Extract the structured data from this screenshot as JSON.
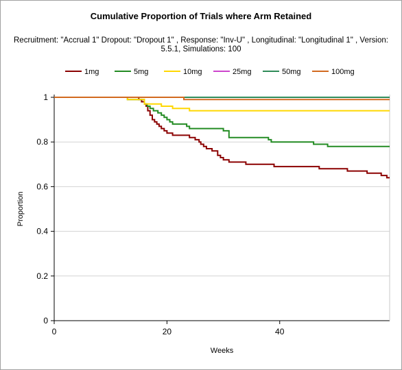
{
  "chart_data": {
    "type": "line",
    "title": "Cumulative Proportion of Trials where Arm Retained",
    "subtitle_lines": [
      "Recruitment: \"Accrual 1\" Dropout: \"Dropout 1\" , Response: \"Inv-U\" , Longitudinal: \"Longitudinal 1\" , Version:",
      "5.5.1, Simulations: 100"
    ],
    "xlabel": "Weeks",
    "ylabel": "Proportion",
    "xlim": [
      0,
      59.5
    ],
    "ylim": [
      0,
      1
    ],
    "x_ticks": [
      0,
      20,
      40
    ],
    "y_ticks": [
      0,
      0.2,
      0.4,
      0.6,
      0.8,
      1
    ],
    "x_tick_labels": [
      "0",
      "20",
      "40"
    ],
    "y_tick_labels": [
      "0",
      "0.2",
      "0.4",
      "0.6",
      "0.8",
      "1"
    ],
    "grid": "horizontal",
    "legend": "top",
    "step": true,
    "series": [
      {
        "name": "1mg",
        "color": "#8b0000",
        "points": [
          [
            0,
            1
          ],
          [
            15,
            1
          ],
          [
            15,
            0.99
          ],
          [
            15.5,
            0.99
          ],
          [
            15.5,
            0.98
          ],
          [
            16,
            0.98
          ],
          [
            16,
            0.97
          ],
          [
            16.3,
            0.97
          ],
          [
            16.3,
            0.96
          ],
          [
            16.6,
            0.96
          ],
          [
            16.6,
            0.94
          ],
          [
            17,
            0.94
          ],
          [
            17,
            0.92
          ],
          [
            17.4,
            0.92
          ],
          [
            17.4,
            0.9
          ],
          [
            17.8,
            0.9
          ],
          [
            17.8,
            0.89
          ],
          [
            18.2,
            0.89
          ],
          [
            18.2,
            0.88
          ],
          [
            18.6,
            0.88
          ],
          [
            18.6,
            0.87
          ],
          [
            19,
            0.87
          ],
          [
            19,
            0.86
          ],
          [
            19.5,
            0.86
          ],
          [
            19.5,
            0.85
          ],
          [
            20,
            0.85
          ],
          [
            20,
            0.84
          ],
          [
            21,
            0.84
          ],
          [
            21,
            0.83
          ],
          [
            24,
            0.83
          ],
          [
            24,
            0.82
          ],
          [
            25,
            0.82
          ],
          [
            25,
            0.81
          ],
          [
            25.7,
            0.81
          ],
          [
            25.7,
            0.8
          ],
          [
            26,
            0.8
          ],
          [
            26,
            0.79
          ],
          [
            26.5,
            0.79
          ],
          [
            26.5,
            0.78
          ],
          [
            27,
            0.78
          ],
          [
            27,
            0.77
          ],
          [
            28,
            0.77
          ],
          [
            28,
            0.76
          ],
          [
            29,
            0.76
          ],
          [
            29,
            0.74
          ],
          [
            29.5,
            0.74
          ],
          [
            29.5,
            0.73
          ],
          [
            30,
            0.73
          ],
          [
            30,
            0.72
          ],
          [
            31,
            0.72
          ],
          [
            31,
            0.71
          ],
          [
            34,
            0.71
          ],
          [
            34,
            0.7
          ],
          [
            39,
            0.7
          ],
          [
            39,
            0.69
          ],
          [
            47,
            0.69
          ],
          [
            47,
            0.68
          ],
          [
            52,
            0.68
          ],
          [
            52,
            0.67
          ],
          [
            55.5,
            0.67
          ],
          [
            55.5,
            0.66
          ],
          [
            58,
            0.66
          ],
          [
            58,
            0.65
          ],
          [
            59,
            0.65
          ],
          [
            59,
            0.64
          ],
          [
            59.5,
            0.64
          ]
        ]
      },
      {
        "name": "5mg",
        "color": "#228b22",
        "points": [
          [
            0,
            1
          ],
          [
            13,
            1
          ],
          [
            13,
            0.99
          ],
          [
            16,
            0.99
          ],
          [
            16,
            0.97
          ],
          [
            16.5,
            0.97
          ],
          [
            16.5,
            0.96
          ],
          [
            17,
            0.96
          ],
          [
            17,
            0.95
          ],
          [
            17.6,
            0.95
          ],
          [
            17.6,
            0.94
          ],
          [
            18.4,
            0.94
          ],
          [
            18.4,
            0.93
          ],
          [
            19,
            0.93
          ],
          [
            19,
            0.92
          ],
          [
            19.5,
            0.92
          ],
          [
            19.5,
            0.91
          ],
          [
            20,
            0.91
          ],
          [
            20,
            0.9
          ],
          [
            20.5,
            0.9
          ],
          [
            20.5,
            0.89
          ],
          [
            21,
            0.89
          ],
          [
            21,
            0.88
          ],
          [
            23.5,
            0.88
          ],
          [
            23.5,
            0.87
          ],
          [
            24,
            0.87
          ],
          [
            24,
            0.86
          ],
          [
            30,
            0.86
          ],
          [
            30,
            0.85
          ],
          [
            31,
            0.85
          ],
          [
            31,
            0.82
          ],
          [
            38,
            0.82
          ],
          [
            38,
            0.81
          ],
          [
            38.5,
            0.81
          ],
          [
            38.5,
            0.8
          ],
          [
            46,
            0.8
          ],
          [
            46,
            0.79
          ],
          [
            48.5,
            0.79
          ],
          [
            48.5,
            0.78
          ],
          [
            59.5,
            0.78
          ]
        ]
      },
      {
        "name": "10mg",
        "color": "#ffd700",
        "points": [
          [
            0,
            1
          ],
          [
            13,
            1
          ],
          [
            13,
            0.99
          ],
          [
            16,
            0.99
          ],
          [
            16,
            0.97
          ],
          [
            19,
            0.97
          ],
          [
            19,
            0.96
          ],
          [
            21,
            0.96
          ],
          [
            21,
            0.95
          ],
          [
            24,
            0.95
          ],
          [
            24,
            0.94
          ],
          [
            59.5,
            0.94
          ]
        ]
      },
      {
        "name": "25mg",
        "color": "#cc44cc",
        "points": [
          [
            0,
            1
          ],
          [
            59.5,
            1
          ]
        ]
      },
      {
        "name": "50mg",
        "color": "#2e8b57",
        "points": [
          [
            0,
            1
          ],
          [
            59.5,
            1
          ]
        ]
      },
      {
        "name": "100mg",
        "color": "#d2691e",
        "points": [
          [
            0,
            1
          ],
          [
            23,
            1
          ],
          [
            23,
            0.99
          ],
          [
            59.5,
            0.99
          ]
        ]
      }
    ]
  }
}
